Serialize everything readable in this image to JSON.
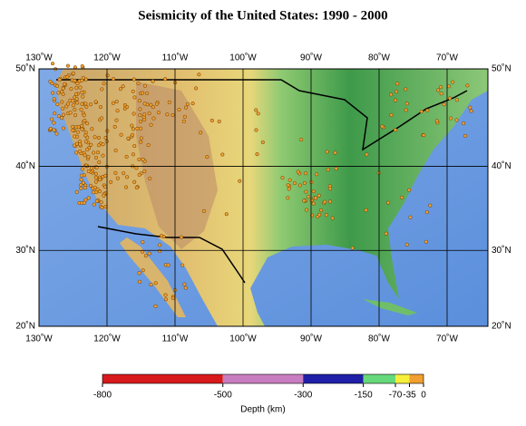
{
  "map": {
    "title": "Seismicity of the United States: 1990 - 2000",
    "xlim": [
      -130,
      -64
    ],
    "ylim": [
      20,
      50
    ],
    "xticks": [
      {
        "value": -130,
        "label": "130˚W"
      },
      {
        "value": -120,
        "label": "120˚W"
      },
      {
        "value": -110,
        "label": "110˚W"
      },
      {
        "value": -100,
        "label": "100˚W"
      },
      {
        "value": -90,
        "label": "90˚W"
      },
      {
        "value": -80,
        "label": "80˚W"
      },
      {
        "value": -70,
        "label": "70˚W"
      }
    ],
    "yticks": [
      {
        "value": 50,
        "label": "50˚N"
      },
      {
        "value": 40,
        "label": "40˚N"
      },
      {
        "value": 30,
        "label": "30˚N"
      },
      {
        "value": 20,
        "label": "20˚N"
      }
    ],
    "colorbar": {
      "label": "Depth (km)",
      "range": [
        -800,
        0
      ],
      "ticks": [
        -800,
        -500,
        -300,
        -150,
        -70,
        -35,
        0
      ],
      "colors": [
        "#d7191c",
        "#c87dc0",
        "#1f1fa8",
        "#66d97a",
        "#f5ef3c",
        "#f0a030"
      ]
    }
  }
}
